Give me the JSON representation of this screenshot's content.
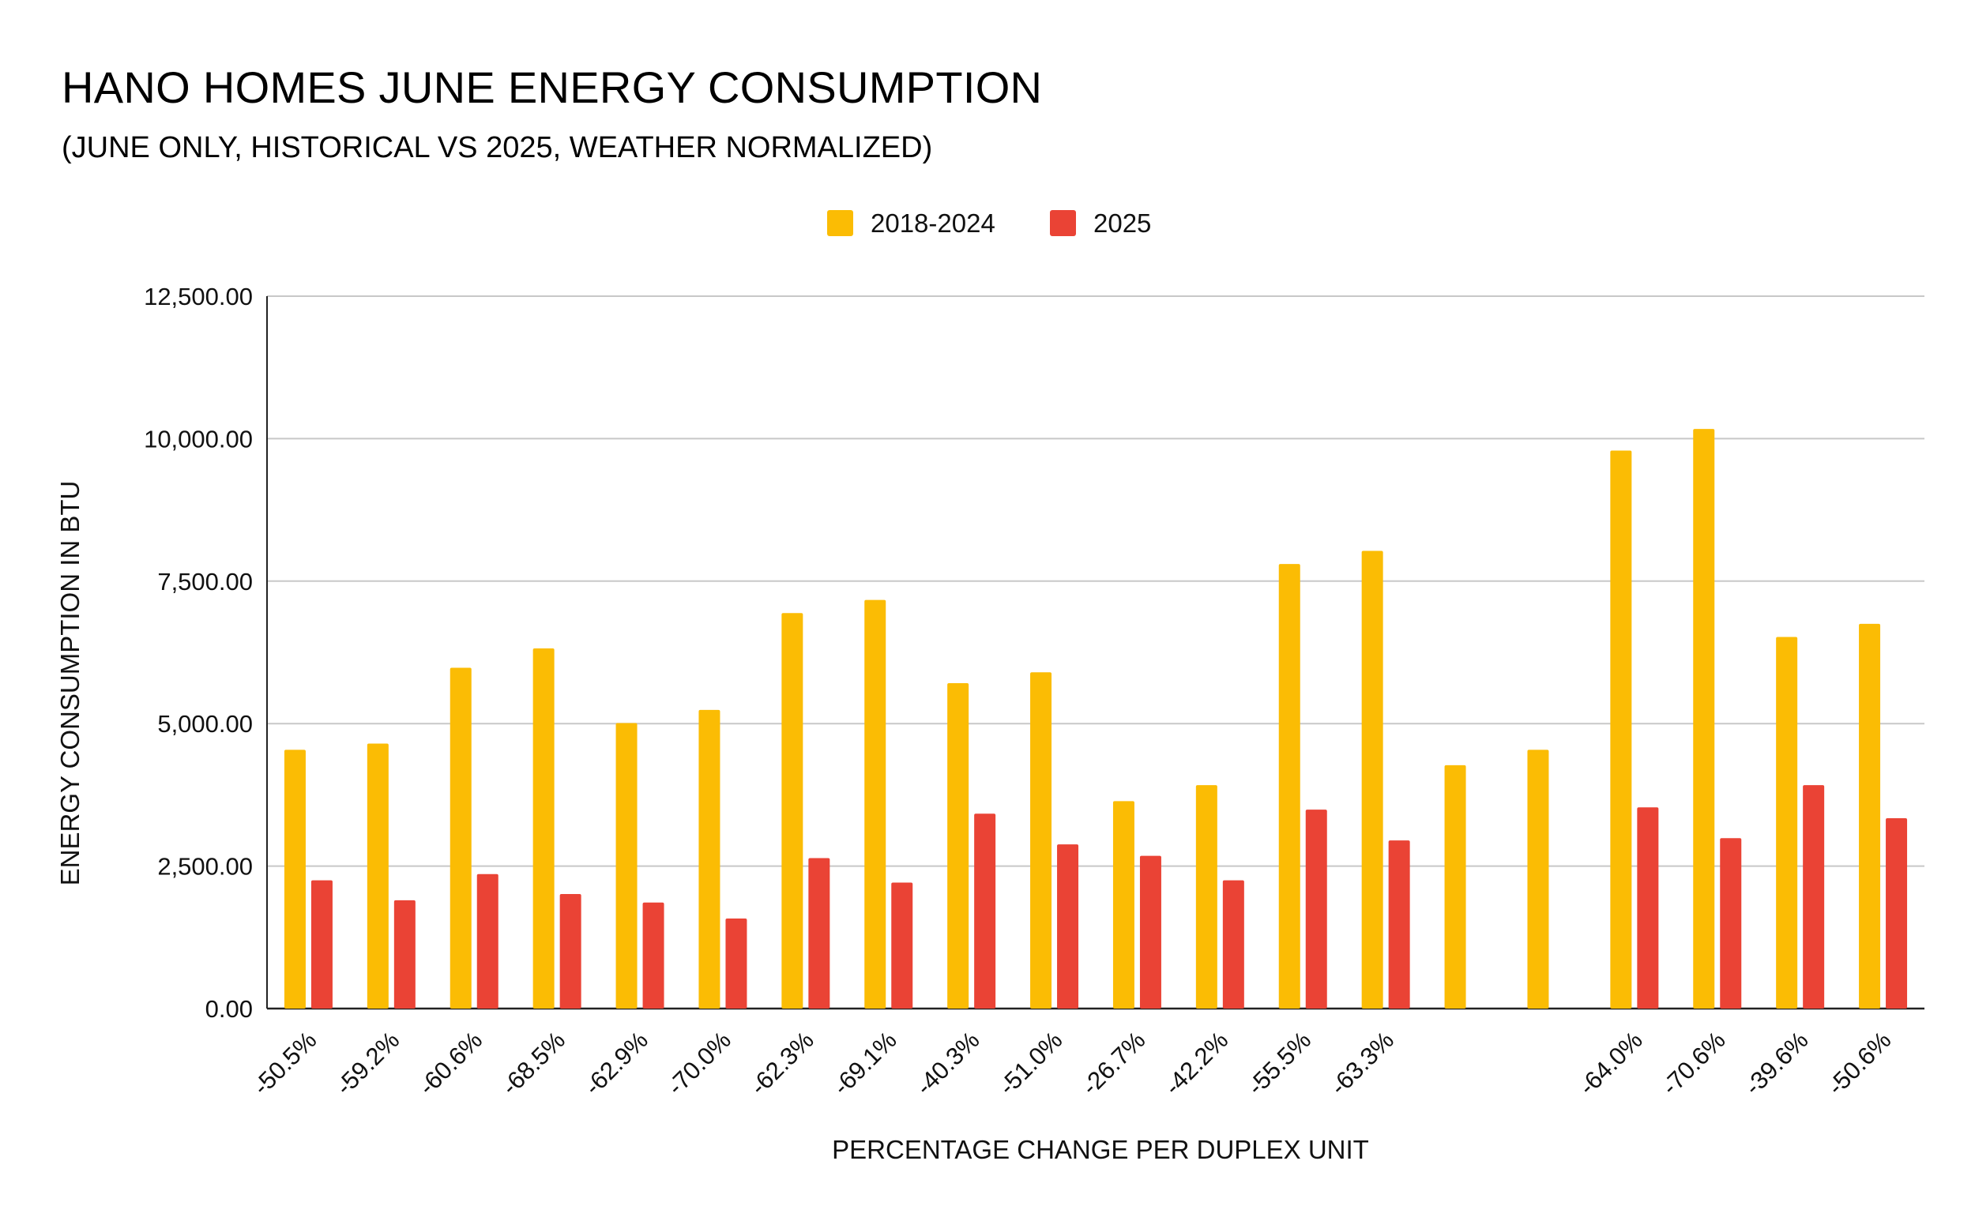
{
  "chart_data": {
    "type": "bar",
    "title": "HANO HOMES JUNE ENERGY CONSUMPTION",
    "subtitle": "(JUNE ONLY, HISTORICAL VS 2025, WEATHER NORMALIZED)",
    "xlabel": "PERCENTAGE CHANGE PER DUPLEX UNIT",
    "ylabel": "ENERGY CONSUMPTION IN BTU",
    "ylim": [
      0,
      12500
    ],
    "yticks": [
      0,
      2500,
      5000,
      7500,
      10000,
      12500
    ],
    "ytick_labels": [
      "0.00",
      "2,500.00",
      "5,000.00",
      "7,500.00",
      "10,000.00",
      "12,500.00"
    ],
    "grid": true,
    "legend_position": "top-center",
    "categories": [
      "-50.5%",
      "-59.2%",
      "-60.6%",
      "-68.5%",
      "-62.9%",
      "-70.0%",
      "-62.3%",
      "-69.1%",
      "-40.3%",
      "-51.0%",
      "-26.7%",
      "-42.2%",
      "-55.5%",
      "-63.3%",
      "",
      "",
      "-64.0%",
      "-70.6%",
      "-39.6%",
      "-50.6%"
    ],
    "series": [
      {
        "name": "2018-2024",
        "color": "#FBBC04",
        "values": [
          4540,
          4650,
          5980,
          6320,
          5010,
          5240,
          6940,
          7170,
          5710,
          5900,
          3640,
          3920,
          7800,
          8030,
          4270,
          4540,
          9790,
          10170,
          6520,
          6750
        ]
      },
      {
        "name": "2025",
        "color": "#EA4335",
        "values": [
          2250,
          1900,
          2360,
          2010,
          1860,
          1580,
          2640,
          2210,
          3420,
          2880,
          2680,
          2250,
          3490,
          2950,
          null,
          null,
          3530,
          2990,
          3920,
          3340
        ]
      }
    ]
  }
}
